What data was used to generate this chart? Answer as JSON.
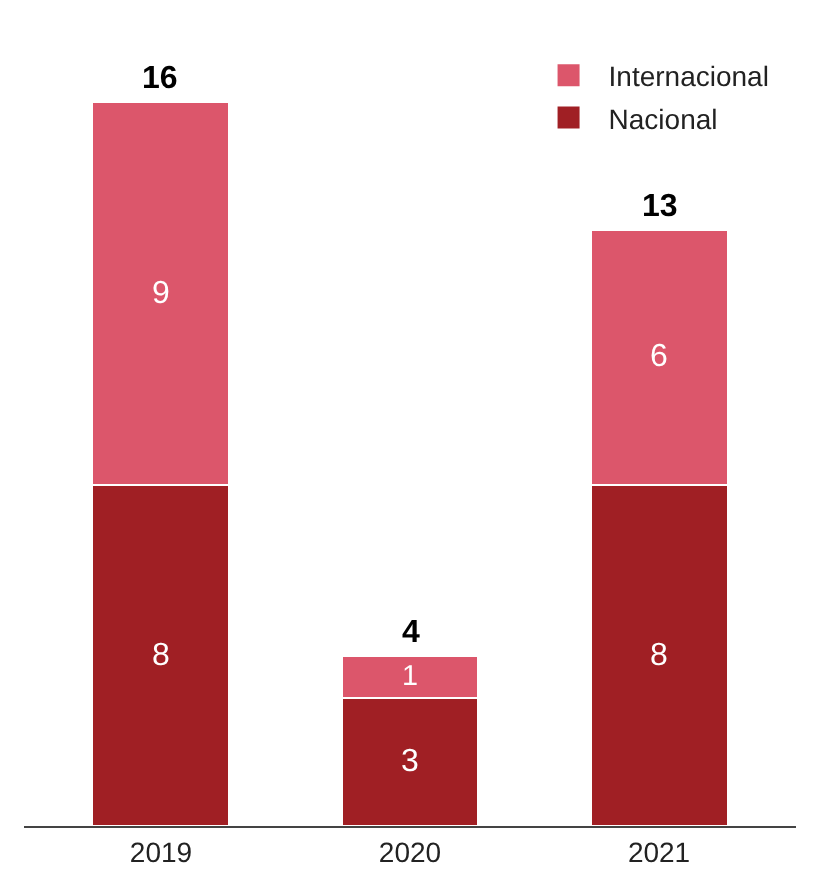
{
  "chart_data": {
    "type": "bar",
    "stacked": true,
    "data_labels": true,
    "legend": "top right",
    "categories": [
      "2019",
      "2020",
      "2021"
    ],
    "series": [
      {
        "name": "Nacional",
        "color": "#a01f24",
        "values": [
          8,
          3,
          8
        ]
      },
      {
        "name": "Internacional",
        "color": "#dc566b",
        "values": [
          9,
          1,
          6
        ]
      }
    ],
    "totals": [
      "16",
      "4",
      "13"
    ]
  }
}
